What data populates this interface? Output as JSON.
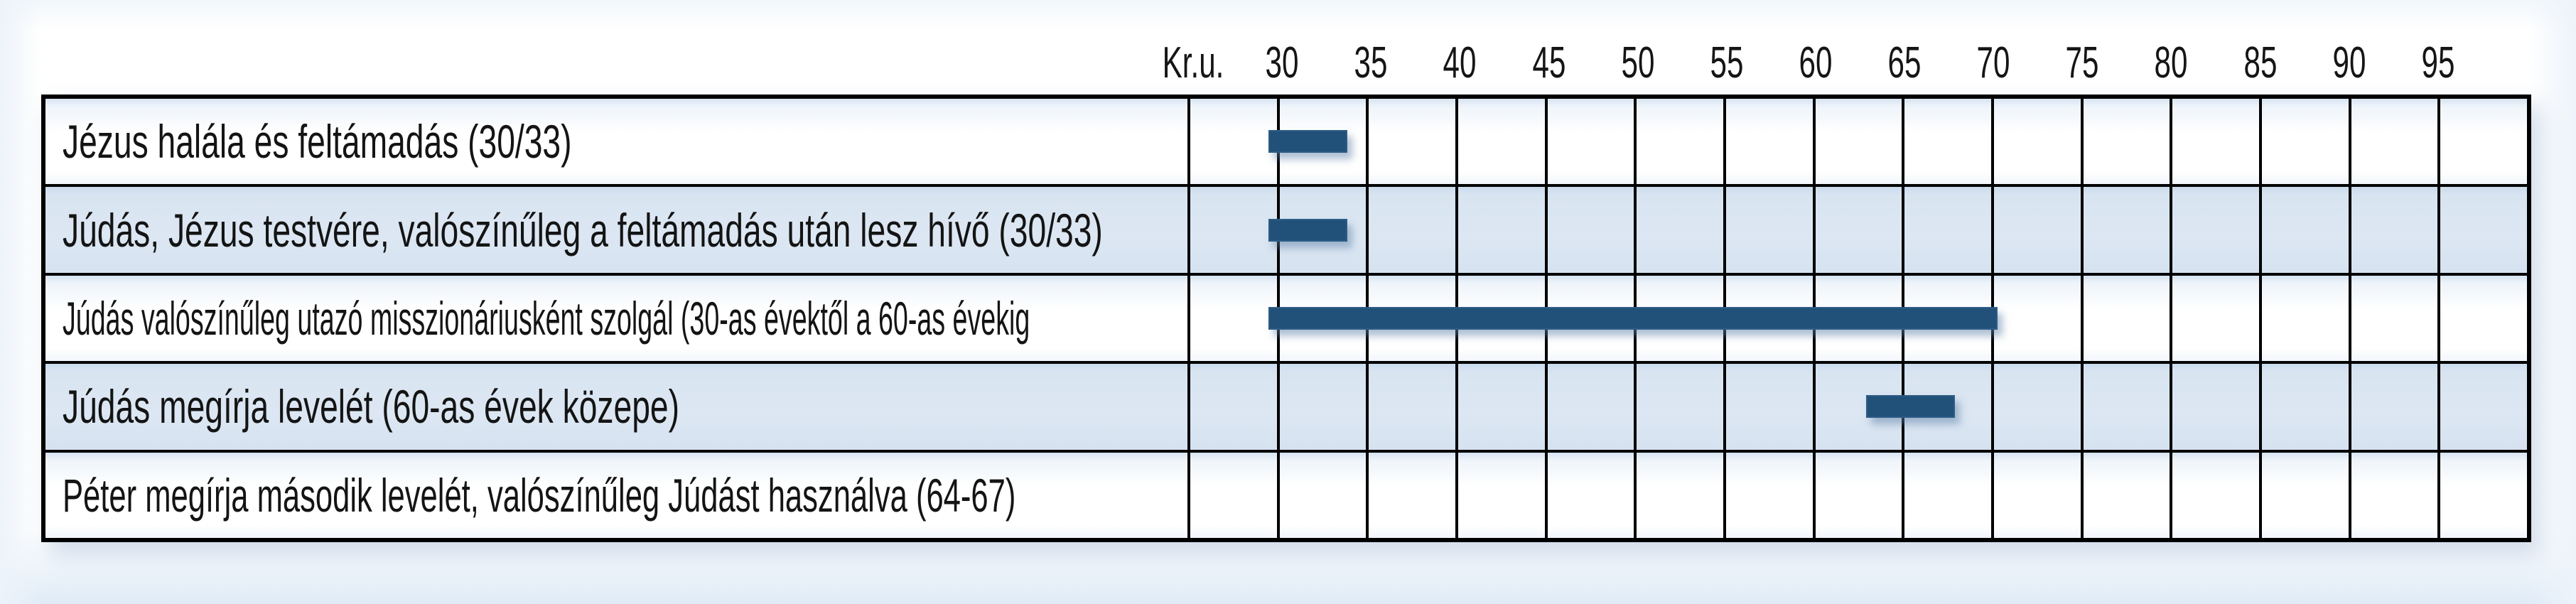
{
  "chart_data": {
    "type": "bar",
    "subtype": "gantt-timeline",
    "title": "",
    "axis": {
      "era_label": "Kr.u.",
      "tick_years": [
        30,
        35,
        40,
        45,
        50,
        55,
        60,
        65,
        70,
        75,
        80,
        85,
        90,
        95
      ],
      "area_start_year": 25,
      "area_end_year": 100,
      "grid_step_years": 5,
      "grid": "on",
      "tick_label_position": "above-gridlines"
    },
    "rows": [
      {
        "label": "Jézus halála és feltámadás (30/33)",
        "bar": {
          "start_year": 29.4,
          "end_year": 33.8
        }
      },
      {
        "label": "Júdás, Jézus testvére, valószínűleg a feltámadás után lesz hívő (30/33)",
        "bar": {
          "start_year": 29.4,
          "end_year": 33.8
        }
      },
      {
        "label": "Júdás valószínűleg utazó misszionáriusként szolgál (30-as évektől a 60-as évekig",
        "bar": {
          "start_year": 29.4,
          "end_year": 70.3
        }
      },
      {
        "label": "Júdás megírja levelét (60-as évek közepe)",
        "bar": {
          "start_year": 62.9,
          "end_year": 67.9
        }
      },
      {
        "label": "Péter megírja második levelét, valószínűleg Júdást használva (64-67)",
        "bar": null
      }
    ],
    "colors": {
      "bar": "#215078",
      "bar_edge": "#2d5c87",
      "row_band": "#dbe6f3",
      "row_plain": "#ffffff",
      "grid_line": "#000000",
      "text": "#1a1a1a"
    },
    "legend": "none"
  }
}
